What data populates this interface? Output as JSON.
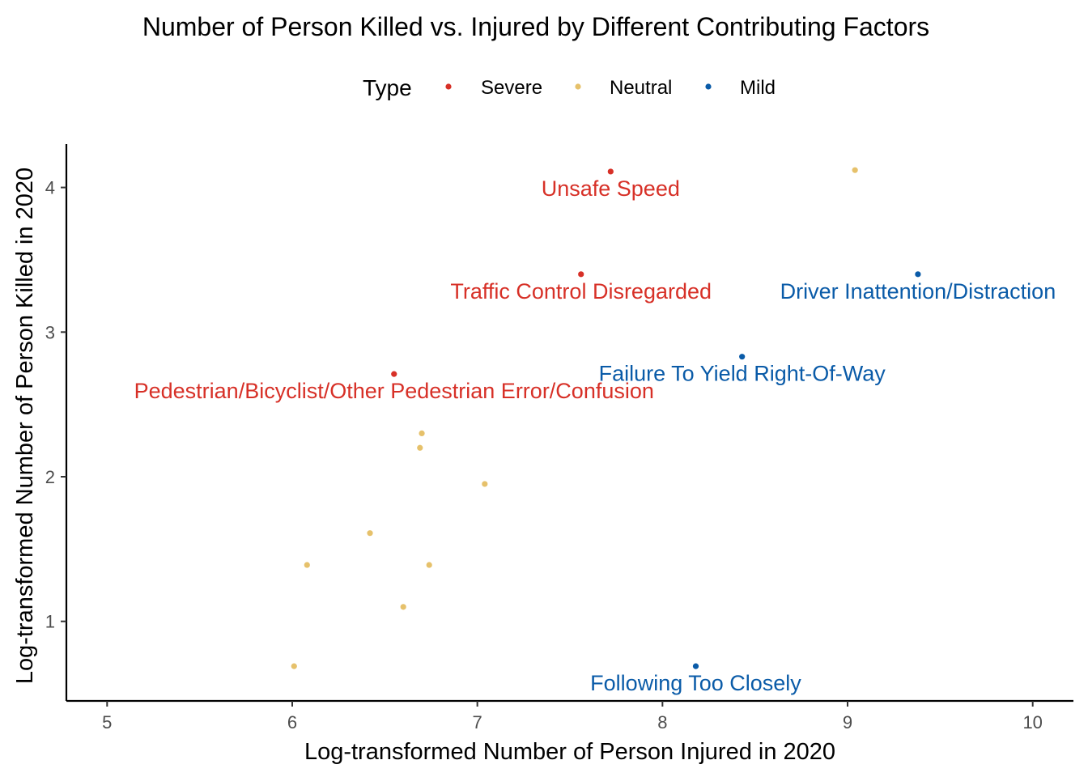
{
  "chart_data": {
    "type": "scatter",
    "title": "Number of Person Killed vs. Injured by Different Contributing Factors",
    "xlabel": "Log-transformed Number of Person Injured in 2020",
    "ylabel": "Log-transformed Number of Person Killed in 2020",
    "xlim": [
      4.78,
      10.22
    ],
    "ylim": [
      0.45,
      4.3
    ],
    "x_ticks": [
      5,
      6,
      7,
      8,
      9,
      10
    ],
    "y_ticks": [
      1,
      2,
      3,
      4
    ],
    "grid": false,
    "legend": {
      "title": "Type",
      "placement": "top",
      "entries": [
        {
          "name": "Severe",
          "color": "#D73027"
        },
        {
          "name": "Neutral",
          "color": "#E6C16B"
        },
        {
          "name": "Mild",
          "color": "#0A5BA8"
        }
      ]
    },
    "series": [
      {
        "name": "Severe",
        "color": "#D73027",
        "points": [
          {
            "x": 7.72,
            "y": 4.11,
            "label": "Unsafe Speed"
          },
          {
            "x": 7.56,
            "y": 3.4,
            "label": "Traffic Control Disregarded"
          },
          {
            "x": 6.55,
            "y": 2.71,
            "label": "Pedestrian/Bicyclist/Other Pedestrian Error/Confusion"
          }
        ]
      },
      {
        "name": "Neutral",
        "color": "#E6C16B",
        "points": [
          {
            "x": 9.04,
            "y": 4.12
          },
          {
            "x": 6.7,
            "y": 2.3
          },
          {
            "x": 6.69,
            "y": 2.2
          },
          {
            "x": 7.04,
            "y": 1.95
          },
          {
            "x": 6.42,
            "y": 1.61
          },
          {
            "x": 6.08,
            "y": 1.39
          },
          {
            "x": 6.74,
            "y": 1.39
          },
          {
            "x": 6.6,
            "y": 1.1
          },
          {
            "x": 6.01,
            "y": 0.69
          }
        ]
      },
      {
        "name": "Mild",
        "color": "#0A5BA8",
        "points": [
          {
            "x": 9.38,
            "y": 3.4,
            "label": "Driver Inattention/Distraction"
          },
          {
            "x": 8.43,
            "y": 2.83,
            "label": "Failure To Yield Right-Of-Way"
          },
          {
            "x": 8.18,
            "y": 0.69,
            "label": "Following Too Closely"
          }
        ]
      }
    ]
  }
}
